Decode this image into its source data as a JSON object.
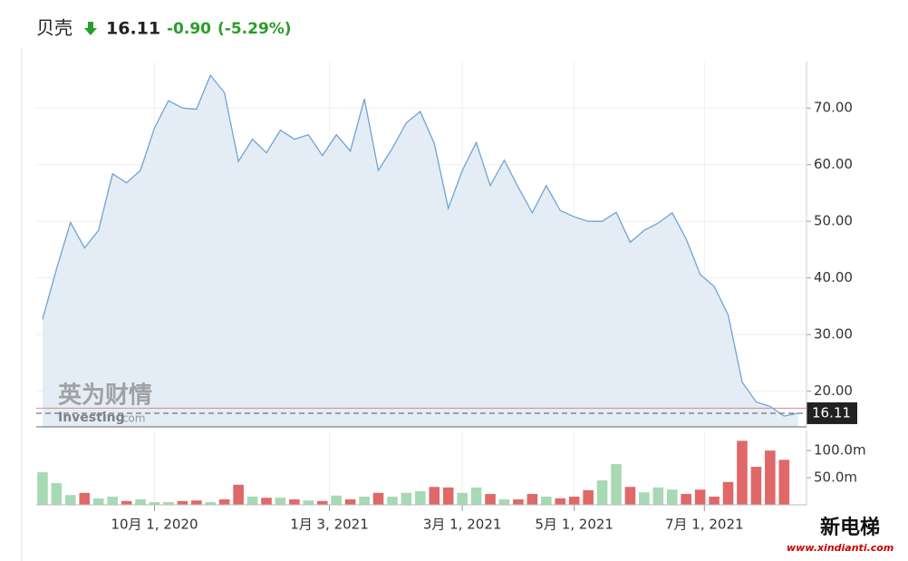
{
  "header": {
    "name": "贝壳",
    "price": "16.11",
    "change": "-0.90",
    "change_pct": "(-5.29%)"
  },
  "watermark": {
    "cn": "英为财情",
    "en": "Investing",
    "dot": ".com"
  },
  "corner_logo": {
    "name": "新电梯",
    "site": "www.xindianti.com"
  },
  "chart_data": [
    {
      "type": "area",
      "color": "#6fa3d2",
      "fill": "#e4edf6",
      "ylim": [
        13.7,
        78.2
      ],
      "xlim": [
        -0.45,
        54.6
      ],
      "yticks": [
        {
          "value": 70,
          "label": "70.00"
        },
        {
          "value": 60,
          "label": "60.00"
        },
        {
          "value": 50,
          "label": "50.00"
        },
        {
          "value": 40,
          "label": "40.00"
        },
        {
          "value": 30,
          "label": "30.00"
        },
        {
          "value": 20,
          "label": "20.00"
        }
      ],
      "grid": true,
      "reference_line": 17.01,
      "values": [
        32.7,
        41.6,
        49.8,
        45.3,
        48.4,
        58.4,
        56.8,
        59.0,
        66.5,
        71.3,
        70.0,
        69.8,
        75.8,
        72.7,
        60.6,
        64.5,
        62.1,
        66.1,
        64.5,
        65.3,
        61.6,
        65.3,
        62.4,
        71.6,
        59.0,
        62.9,
        67.4,
        69.4,
        63.7,
        52.3,
        59.0,
        63.9,
        56.3,
        60.8,
        56.0,
        51.5,
        56.3,
        51.9,
        50.8,
        50.0,
        50.0,
        51.6,
        46.3,
        48.4,
        49.7,
        51.5,
        46.9,
        40.6,
        38.5,
        33.5,
        21.6,
        18.1,
        17.3,
        15.6,
        16.11
      ]
    },
    {
      "type": "bar",
      "ylim": [
        0,
        137
      ],
      "xlim": [
        -0.45,
        54.6
      ],
      "yticks": [
        {
          "value": 100,
          "label": "100.0m"
        },
        {
          "value": 50,
          "label": "50.0m"
        }
      ],
      "xticks": [
        {
          "value": 8,
          "label": "10月 1, 2020"
        },
        {
          "value": 20.5,
          "label": "1月 3, 2021"
        },
        {
          "value": 30,
          "label": "3月 1, 2021"
        },
        {
          "value": 38,
          "label": "5月 1, 2021"
        },
        {
          "value": 47.3,
          "label": "7月 1, 2021"
        }
      ],
      "values": [
        60,
        40,
        18,
        22,
        12,
        15,
        7,
        10,
        5,
        5,
        7,
        8,
        5,
        10,
        37,
        15,
        13,
        13,
        10,
        8,
        7,
        17,
        10,
        15,
        22,
        15,
        22,
        25,
        33,
        32,
        22,
        32,
        20,
        10,
        10,
        20,
        15,
        12,
        15,
        27,
        45,
        75,
        33,
        23,
        32,
        28,
        20,
        28,
        15,
        42,
        118,
        70,
        100,
        83,
        null
      ],
      "colors": [
        "#a6d9b4",
        "#a6d9b4",
        "#a6d9b4",
        "#e06868",
        "#a6d9b4",
        "#a6d9b4",
        "#e06868",
        "#a6d9b4",
        "#a6d9b4",
        "#a6d9b4",
        "#e06868",
        "#e06868",
        "#a6d9b4",
        "#e06868",
        "#e06868",
        "#a6d9b4",
        "#e06868",
        "#a6d9b4",
        "#e06868",
        "#a6d9b4",
        "#e06868",
        "#a6d9b4",
        "#e06868",
        "#a6d9b4",
        "#e06868",
        "#a6d9b4",
        "#a6d9b4",
        "#a6d9b4",
        "#e06868",
        "#e06868",
        "#a6d9b4",
        "#a6d9b4",
        "#e06868",
        "#a6d9b4",
        "#e06868",
        "#e06868",
        "#a6d9b4",
        "#e06868",
        "#e06868",
        "#e06868",
        "#a6d9b4",
        "#a6d9b4",
        "#e06868",
        "#a6d9b4",
        "#a6d9b4",
        "#a6d9b4",
        "#e06868",
        "#e06868",
        "#e06868",
        "#e06868",
        "#e06868",
        "#e06868",
        "#e06868",
        "#e06868",
        null
      ]
    }
  ]
}
